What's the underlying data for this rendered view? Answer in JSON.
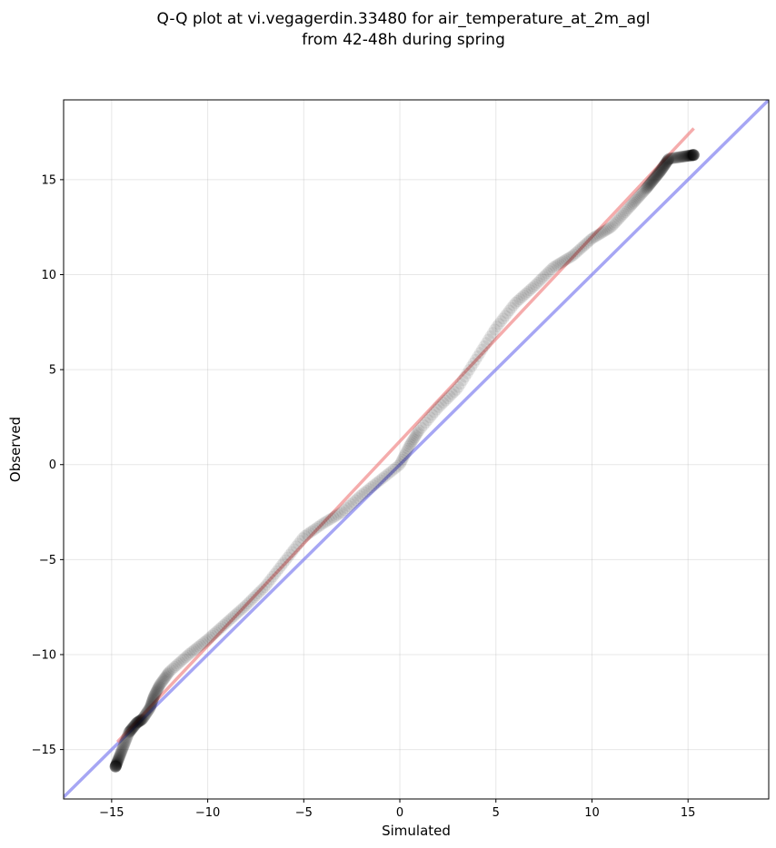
{
  "chart_data": {
    "type": "scatter",
    "title_line1": "Q-Q plot at vi.vegagerdin.33480 for air_temperature_at_2m_agl",
    "title_line2": "from 42-48h during spring",
    "xlabel": "Simulated",
    "ylabel": "Observed",
    "xlim": [
      -17.5,
      19.2
    ],
    "ylim": [
      -17.6,
      19.2
    ],
    "xticks": [
      -15,
      -10,
      -5,
      0,
      5,
      10,
      15
    ],
    "yticks": [
      -15,
      -10,
      -5,
      0,
      5,
      10,
      15
    ],
    "xtick_labels": [
      "−15",
      "−10",
      "−5",
      "0",
      "5",
      "10",
      "15"
    ],
    "ytick_labels": [
      "−15",
      "−10",
      "−5",
      "0",
      "5",
      "10",
      "15"
    ],
    "grid": true,
    "colors": {
      "points": "#000000",
      "fit_line": "#f08080",
      "identity_line": "#8080f0"
    },
    "identity_line": {
      "name": "",
      "from": [
        -17.5,
        -17.5
      ],
      "to": [
        19.2,
        19.2
      ]
    },
    "fit_line": {
      "name": "",
      "from": [
        -14.7,
        -14.6
      ],
      "to": [
        15.3,
        17.7
      ]
    },
    "quantile_anchors": {
      "x": [
        -14.8,
        -14.1,
        -13.7,
        -13.4,
        -13.0,
        -12.8,
        -12.5,
        -12.0,
        -11.0,
        -10.0,
        -9.0,
        -8.0,
        -7.0,
        -6.0,
        -5.0,
        -4.0,
        -3.0,
        -2.0,
        -1.0,
        0.0,
        0.5,
        1.0,
        2.0,
        3.0,
        4.0,
        5.0,
        6.0,
        7.0,
        8.0,
        9.0,
        10.0,
        11.0,
        12.0,
        12.8,
        13.2,
        13.6,
        14.0,
        15.3
      ],
      "y": [
        -15.9,
        -14.1,
        -13.6,
        -13.4,
        -12.8,
        -12.2,
        -11.6,
        -10.9,
        -10.0,
        -9.2,
        -8.3,
        -7.4,
        -6.4,
        -5.1,
        -3.8,
        -3.1,
        -2.5,
        -1.6,
        -0.8,
        0.0,
        1.0,
        1.8,
        3.0,
        4.0,
        5.6,
        7.2,
        8.5,
        9.4,
        10.4,
        11.0,
        11.9,
        12.5,
        13.6,
        14.5,
        15.0,
        15.5,
        16.1,
        16.3
      ]
    },
    "n_points": 500
  }
}
